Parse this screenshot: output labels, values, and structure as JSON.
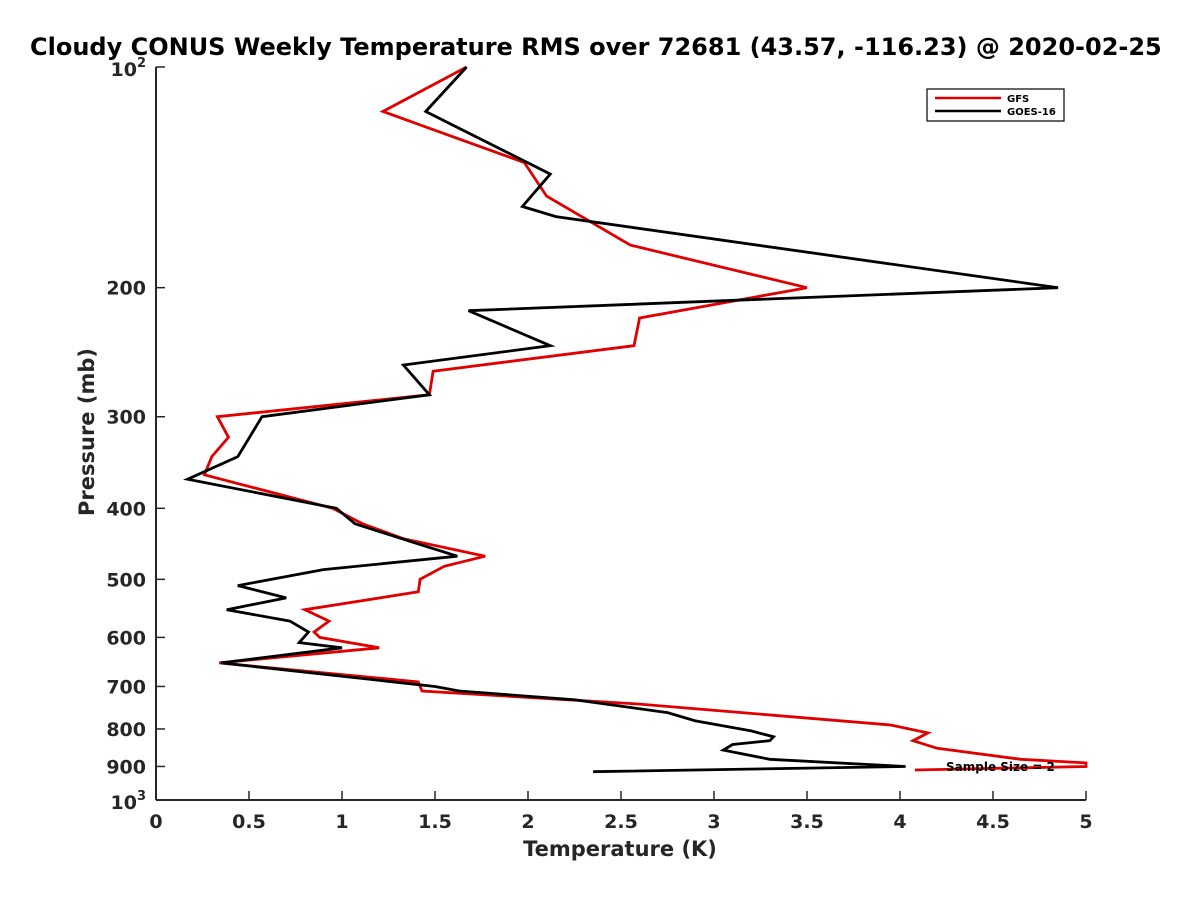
{
  "chart_data": {
    "type": "line",
    "title": "Cloudy CONUS Weekly Temperature RMS over 72681 (43.57, -116.23) @ 2020-02-25",
    "xlabel": "Temperature (K)",
    "ylabel": "Pressure (mb)",
    "xlim": [
      0,
      5
    ],
    "ylim": [
      100,
      1000
    ],
    "y_scale": "log",
    "y_reversed": true,
    "x_ticks": [
      "0",
      "0.5",
      "1",
      "1.5",
      "2",
      "2.5",
      "3",
      "3.5",
      "4",
      "4.5",
      "5"
    ],
    "y_ticks": [
      {
        "value": 100,
        "base": "10",
        "exp": "2"
      },
      {
        "value": 200,
        "label": "200"
      },
      {
        "value": 300,
        "label": "300"
      },
      {
        "value": 400,
        "label": "400"
      },
      {
        "value": 500,
        "label": "500"
      },
      {
        "value": 600,
        "label": "600"
      },
      {
        "value": 700,
        "label": "700"
      },
      {
        "value": 800,
        "label": "800"
      },
      {
        "value": 900,
        "label": "900"
      },
      {
        "value": 1000,
        "base": "10",
        "exp": "3"
      }
    ],
    "grid": false,
    "legend_position": "top-right",
    "annotation": "Sample Size = 2",
    "series": [
      {
        "name": "GFS",
        "color": "#e00000",
        "points": [
          [
            1.67,
            100
          ],
          [
            1.22,
            115
          ],
          [
            1.98,
            135
          ],
          [
            2.1,
            150
          ],
          [
            2.55,
            175
          ],
          [
            3.5,
            200
          ],
          [
            2.6,
            220
          ],
          [
            2.57,
            240
          ],
          [
            1.49,
            260
          ],
          [
            1.47,
            280
          ],
          [
            0.33,
            300
          ],
          [
            0.39,
            320
          ],
          [
            0.3,
            340
          ],
          [
            0.26,
            360
          ],
          [
            0.95,
            400
          ],
          [
            1.11,
            420
          ],
          [
            1.33,
            440
          ],
          [
            1.77,
            465
          ],
          [
            1.55,
            480
          ],
          [
            1.42,
            500
          ],
          [
            1.41,
            520
          ],
          [
            0.8,
            550
          ],
          [
            0.93,
            570
          ],
          [
            0.85,
            590
          ],
          [
            0.88,
            600
          ],
          [
            1.2,
            620
          ],
          [
            0.34,
            650
          ],
          [
            1.41,
            690
          ],
          [
            1.43,
            710
          ],
          [
            2.6,
            740
          ],
          [
            3.95,
            790
          ],
          [
            4.15,
            810
          ],
          [
            4.07,
            830
          ],
          [
            4.2,
            850
          ],
          [
            4.65,
            880
          ],
          [
            5.0,
            890
          ],
          [
            5.0,
            900
          ],
          [
            4.08,
            910
          ]
        ]
      },
      {
        "name": "GOES-16",
        "color": "#000000",
        "points": [
          [
            1.67,
            100
          ],
          [
            1.45,
            115
          ],
          [
            2.12,
            140
          ],
          [
            1.97,
            155
          ],
          [
            2.15,
            160
          ],
          [
            4.85,
            200
          ],
          [
            1.68,
            215
          ],
          [
            2.12,
            240
          ],
          [
            1.33,
            255
          ],
          [
            1.47,
            280
          ],
          [
            0.57,
            300
          ],
          [
            0.44,
            340
          ],
          [
            0.17,
            365
          ],
          [
            0.97,
            400
          ],
          [
            1.07,
            420
          ],
          [
            1.38,
            445
          ],
          [
            1.62,
            465
          ],
          [
            0.9,
            485
          ],
          [
            0.44,
            510
          ],
          [
            0.7,
            530
          ],
          [
            0.38,
            550
          ],
          [
            0.72,
            570
          ],
          [
            0.82,
            590
          ],
          [
            0.77,
            610
          ],
          [
            1.0,
            620
          ],
          [
            0.35,
            650
          ],
          [
            1.5,
            700
          ],
          [
            1.63,
            710
          ],
          [
            2.25,
            730
          ],
          [
            2.75,
            760
          ],
          [
            2.9,
            780
          ],
          [
            3.2,
            805
          ],
          [
            3.32,
            820
          ],
          [
            3.3,
            830
          ],
          [
            3.1,
            840
          ],
          [
            3.05,
            855
          ],
          [
            3.3,
            880
          ],
          [
            4.03,
            900
          ],
          [
            2.35,
            915
          ]
        ]
      }
    ]
  },
  "colors": {
    "gfs": "#e00000",
    "goes16": "#000000",
    "axis": "#262626"
  }
}
